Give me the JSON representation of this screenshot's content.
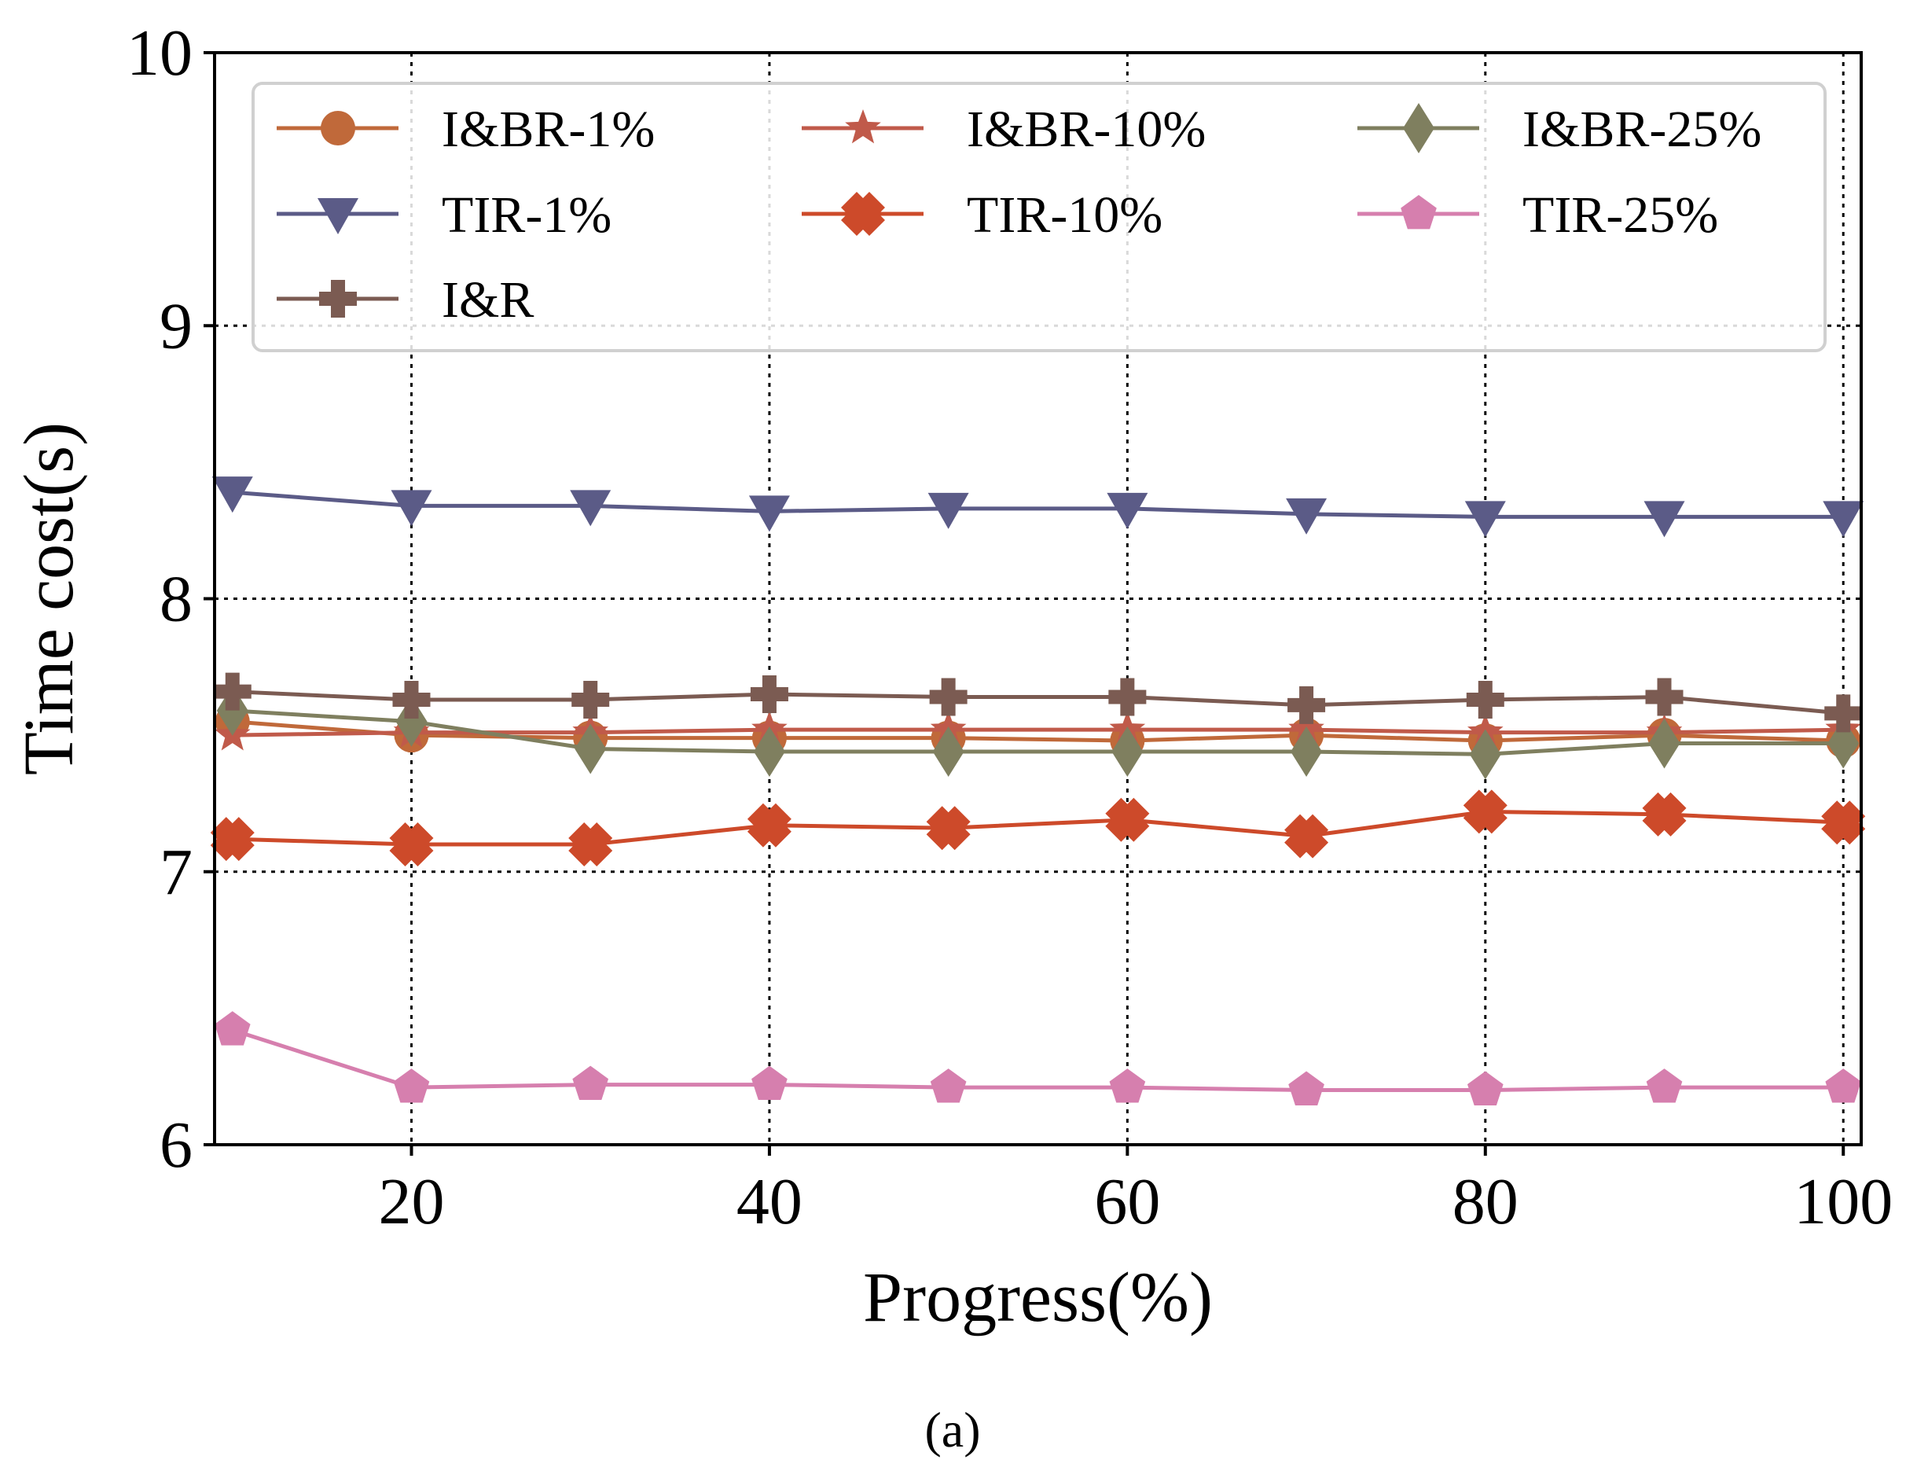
{
  "chart_data": {
    "type": "line",
    "title": "",
    "caption": "(a)",
    "xlabel": "Progress(%)",
    "ylabel": "Time cost(s)",
    "xlim": [
      9,
      101
    ],
    "ylim": [
      6,
      10
    ],
    "x_ticks": [
      20,
      40,
      60,
      80,
      100
    ],
    "y_ticks": [
      6,
      7,
      8,
      9,
      10
    ],
    "x_tick_labels": [
      "20",
      "40",
      "60",
      "80",
      "100"
    ],
    "y_tick_labels": [
      "6",
      "7",
      "8",
      "9",
      "10"
    ],
    "grid": true,
    "legend_position": "top",
    "x": [
      10,
      20,
      30,
      40,
      50,
      60,
      70,
      80,
      90,
      100
    ],
    "series": [
      {
        "name": "I&BR-1%",
        "color": "#c0693a",
        "marker": "circle",
        "values": [
          7.55,
          7.5,
          7.49,
          7.49,
          7.49,
          7.48,
          7.5,
          7.48,
          7.5,
          7.48
        ]
      },
      {
        "name": "I&BR-10%",
        "color": "#c05a4a",
        "marker": "star",
        "values": [
          7.5,
          7.51,
          7.51,
          7.52,
          7.52,
          7.52,
          7.52,
          7.51,
          7.51,
          7.52
        ]
      },
      {
        "name": "I&BR-25%",
        "color": "#7f7f5f",
        "marker": "diamond",
        "values": [
          7.59,
          7.55,
          7.45,
          7.44,
          7.44,
          7.44,
          7.44,
          7.43,
          7.47,
          7.47
        ]
      },
      {
        "name": "TIR-1%",
        "color": "#5b5b87",
        "marker": "triangle-down",
        "values": [
          8.39,
          8.34,
          8.34,
          8.32,
          8.33,
          8.33,
          8.31,
          8.3,
          8.3,
          8.3
        ]
      },
      {
        "name": "TIR-10%",
        "color": "#cd4a2a",
        "marker": "x",
        "values": [
          7.12,
          7.1,
          7.1,
          7.17,
          7.16,
          7.19,
          7.13,
          7.22,
          7.21,
          7.18
        ]
      },
      {
        "name": "TIR-25%",
        "color": "#d67fae",
        "marker": "pentagon",
        "values": [
          6.42,
          6.21,
          6.22,
          6.22,
          6.21,
          6.21,
          6.2,
          6.2,
          6.21,
          6.21
        ]
      },
      {
        "name": "I&R",
        "color": "#7b5b52",
        "marker": "plus",
        "values": [
          7.66,
          7.63,
          7.63,
          7.65,
          7.64,
          7.64,
          7.61,
          7.63,
          7.64,
          7.58
        ]
      }
    ]
  }
}
